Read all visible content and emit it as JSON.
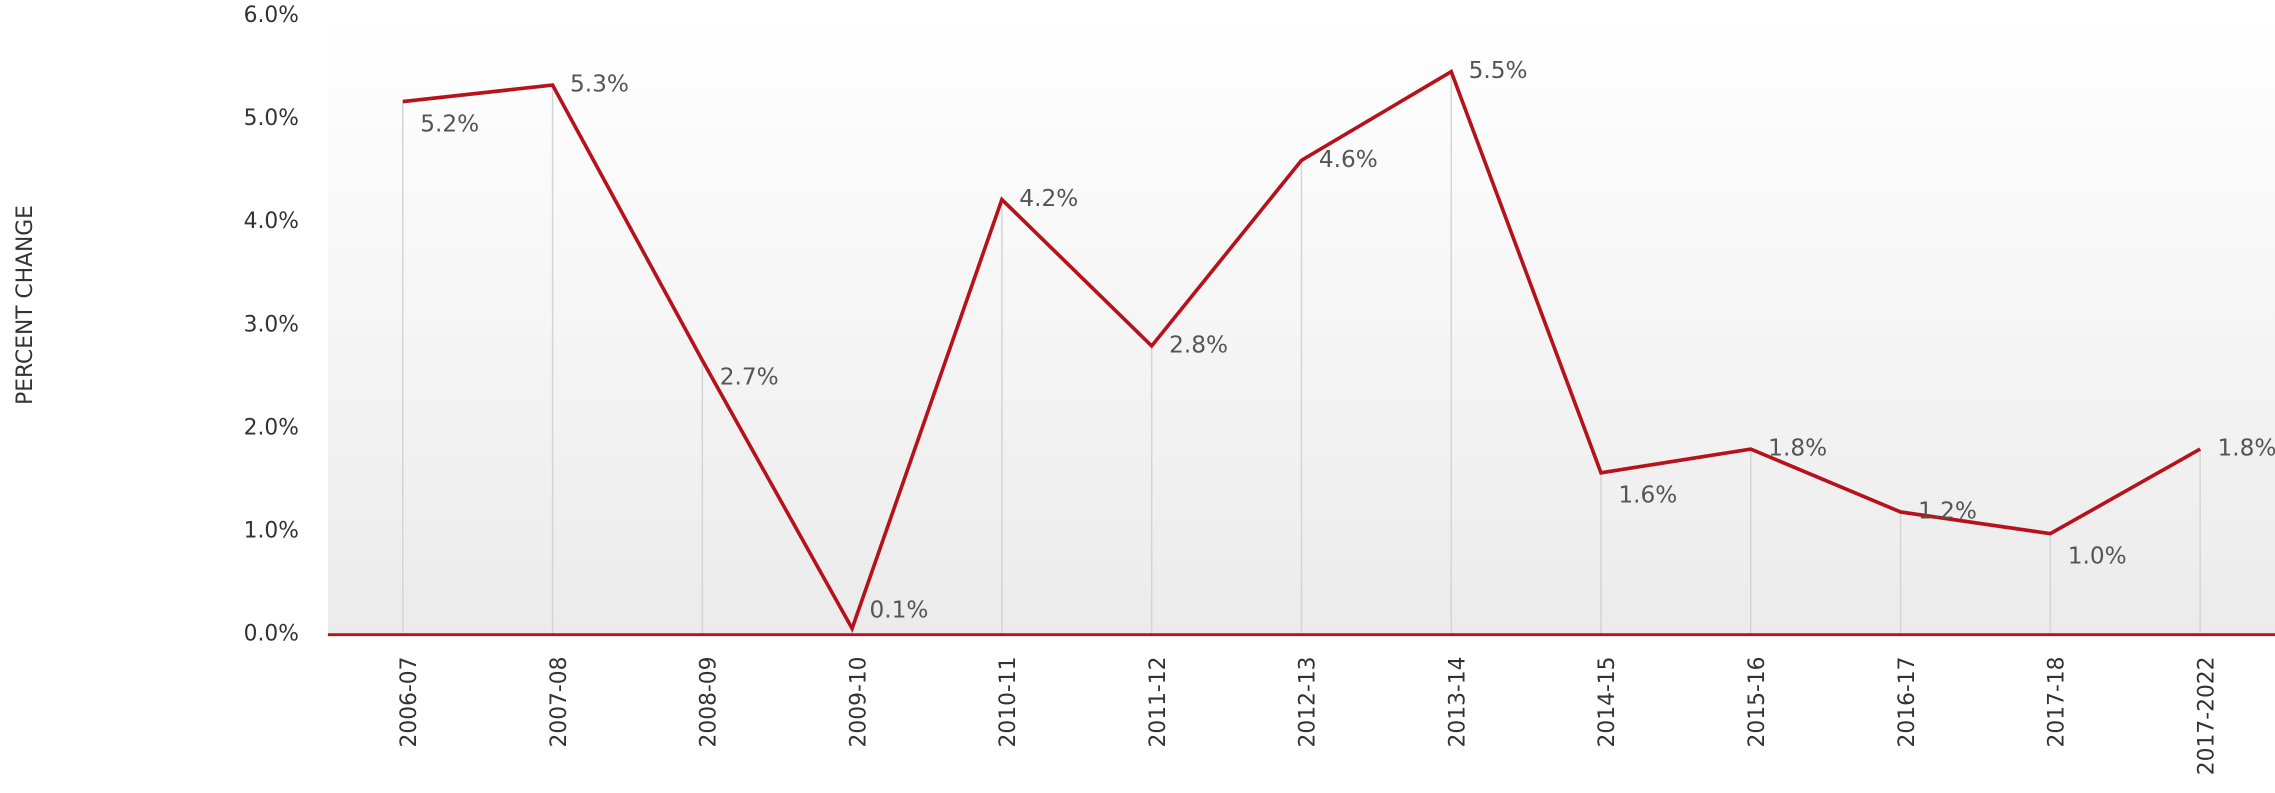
{
  "chart_data": {
    "type": "line",
    "y_axis_label": "PERCENT CHANGE",
    "categories": [
      "2006-07",
      "2007-08",
      "2008-09",
      "2009-10",
      "2010-11",
      "2011-12",
      "2012-13",
      "2013-14",
      "2014-15",
      "2015-16",
      "2016-17",
      "2017-18",
      "2017-2022"
    ],
    "series": [
      {
        "name": "Percent change",
        "color": "#b5121b",
        "values": [
          5.17,
          5.33,
          2.66,
          0.06,
          4.22,
          2.8,
          4.6,
          5.46,
          1.57,
          1.8,
          1.19,
          0.98,
          1.8
        ],
        "value_labels": [
          "5.2%",
          "5.3%",
          "2.7%",
          "0.1%",
          "4.2%",
          "2.8%",
          "4.6%",
          "5.5%",
          "1.6%",
          "1.8%",
          "1.2%",
          "1.0%",
          "1.8%"
        ]
      }
    ],
    "ylim": [
      0,
      6
    ],
    "yticks": [
      {
        "value": 0,
        "label": "0.0%"
      },
      {
        "value": 1,
        "label": "1.0%"
      },
      {
        "value": 2,
        "label": "2.0%"
      },
      {
        "value": 3,
        "label": "3.0%"
      },
      {
        "value": 4,
        "label": "4.0%"
      },
      {
        "value": 5,
        "label": "5.0%"
      },
      {
        "value": 6,
        "label": "6.0%"
      }
    ]
  }
}
